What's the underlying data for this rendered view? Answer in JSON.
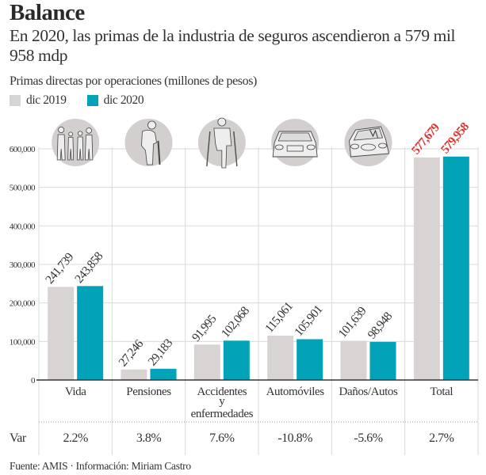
{
  "header": {
    "title": "Balance",
    "subtitle": "En 2020, las primas de la industria de seguros ascendieron a 579 mil 958 mdp",
    "caption": "Primas directas por operaciones (millones de pesos)"
  },
  "legend": [
    {
      "label": "dic 2019",
      "color": "#d8d4d3"
    },
    {
      "label": "dic 2020",
      "color": "#02a2b8"
    }
  ],
  "footer": "Fuente: AMIS · Información: Miriam Castro",
  "chart_data": {
    "type": "bar",
    "title": "Primas directas por operaciones (millones de pesos)",
    "xlabel": "",
    "ylabel": "",
    "ylim": [
      0,
      600000
    ],
    "yticks": [
      0,
      100000,
      200000,
      300000,
      400000,
      500000,
      600000
    ],
    "ytick_labels": [
      "0",
      "100,000",
      "200,000",
      "300,000",
      "400,000",
      "500,000",
      "600,000"
    ],
    "grid": true,
    "legend_position": "top-left",
    "categories": [
      "Vida",
      "Pensiones",
      "Accidentes y enfermedades",
      "Automóviles",
      "Daños/Autos",
      "Total"
    ],
    "category_label_lines": [
      [
        "Vida"
      ],
      [
        "Pensiones"
      ],
      [
        "Accidentes",
        "y",
        "enfermedades"
      ],
      [
        "Automóviles"
      ],
      [
        "Daños/Autos"
      ],
      [
        "Total"
      ]
    ],
    "icons": [
      "family-icon",
      "elderly-person-icon",
      "person-on-crutches-icon",
      "car-front-icon",
      "crashed-car-icon",
      ""
    ],
    "series": [
      {
        "name": "dic 2019",
        "color": "#d8d4d3",
        "values": [
          241739,
          27246,
          91995,
          115061,
          101639,
          577679
        ],
        "labels": [
          "241,739",
          "27,246",
          "91,995",
          "115,061",
          "101,639",
          "577,679"
        ]
      },
      {
        "name": "dic 2020",
        "color": "#02a2b8",
        "values": [
          243858,
          29183,
          102068,
          105901,
          98948,
          579958
        ],
        "labels": [
          "243,858",
          "29,183",
          "102,068",
          "105,901",
          "98,948",
          "579,958"
        ]
      }
    ],
    "highlight_label_color": "#e0312a",
    "variation": {
      "label": "Var",
      "values": [
        "2.2%",
        "3.8%",
        "7.6%",
        "-10.8%",
        "-5.6%",
        "2.7%"
      ]
    }
  }
}
